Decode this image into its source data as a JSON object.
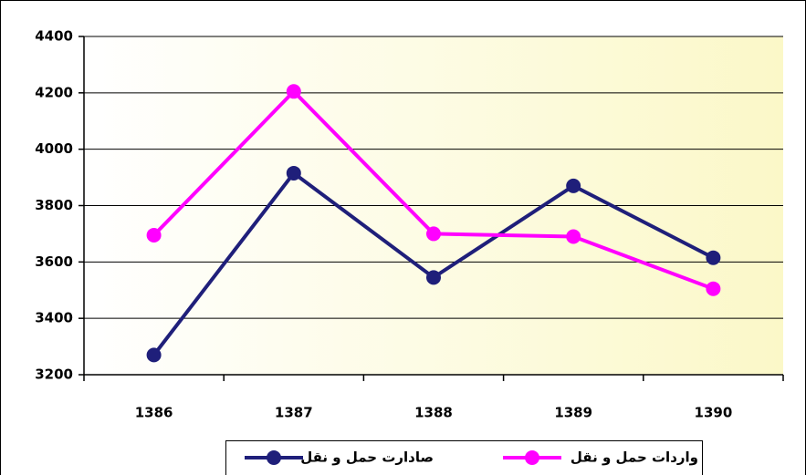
{
  "chart_data": {
    "type": "line",
    "categories": [
      "1386",
      "1387",
      "1388",
      "1389",
      "1390"
    ],
    "series": [
      {
        "name": "صادارت حمل و نقل",
        "color": "#1f1f7a",
        "values": [
          3270,
          3915,
          3545,
          3870,
          3615
        ]
      },
      {
        "name": "واردات حمل و نقل",
        "color": "#ff00ff",
        "values": [
          3695,
          4205,
          3700,
          3690,
          3505
        ]
      }
    ],
    "ylim": [
      3200,
      4400
    ],
    "yticks": [
      3200,
      3400,
      3600,
      3800,
      4000,
      4200,
      4400
    ],
    "grid": true,
    "legend": "bottom"
  }
}
